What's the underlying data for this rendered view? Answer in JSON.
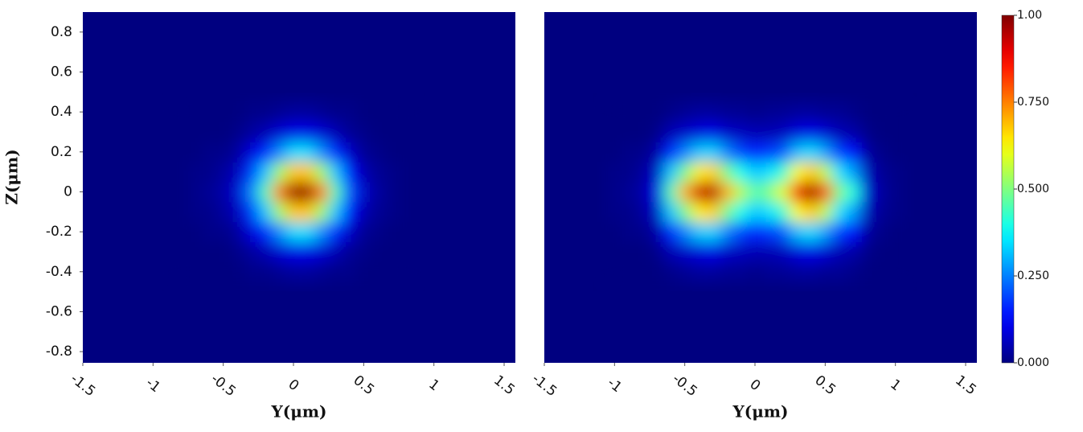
{
  "chart_data": [
    {
      "type": "heatmap",
      "colormap": "jet",
      "xlabel": "Y(μm)",
      "ylabel": "Z(μm)",
      "xlim": [
        -1.5,
        1.58
      ],
      "ylim": [
        -0.856,
        0.9
      ],
      "zlim": [
        0,
        1
      ],
      "xticks": [
        -1.5,
        -1,
        -0.5,
        0,
        0.5,
        1,
        1.5
      ],
      "yticks": [
        -0.8,
        -0.6,
        -0.4,
        -0.2,
        0,
        0.2,
        0.4,
        0.6,
        0.8
      ],
      "x": [
        -0.8,
        -0.7,
        -0.6,
        -0.5,
        -0.4,
        -0.3,
        -0.2,
        -0.1,
        0,
        0.1,
        0.2,
        0.3,
        0.4,
        0.5,
        0.6,
        0.7,
        0.8
      ],
      "y": [
        -0.4,
        -0.3,
        -0.2,
        -0.1,
        0,
        0.1,
        0.2,
        0.3,
        0.4
      ],
      "z": [
        [
          0,
          0,
          0,
          0,
          0,
          0.01,
          0.01,
          0.02,
          0.03,
          0.03,
          0.02,
          0.01,
          0.01,
          0,
          0,
          0,
          0
        ],
        [
          0,
          0,
          0,
          0,
          0.01,
          0.03,
          0.05,
          0.08,
          0.1,
          0.1,
          0.08,
          0.05,
          0.02,
          0.01,
          0,
          0,
          0
        ],
        [
          0,
          0,
          0.01,
          0.01,
          0.03,
          0.09,
          0.16,
          0.26,
          0.34,
          0.34,
          0.26,
          0.16,
          0.07,
          0.02,
          0.01,
          0,
          0
        ],
        [
          0,
          0.01,
          0.01,
          0.03,
          0.06,
          0.18,
          0.32,
          0.53,
          0.68,
          0.68,
          0.53,
          0.32,
          0.14,
          0.05,
          0.02,
          0.01,
          0
        ],
        [
          0,
          0.01,
          0.02,
          0.04,
          0.08,
          0.25,
          0.45,
          0.75,
          0.97,
          0.97,
          0.75,
          0.45,
          0.2,
          0.07,
          0.03,
          0.01,
          0
        ],
        [
          0,
          0.01,
          0.01,
          0.03,
          0.06,
          0.18,
          0.32,
          0.53,
          0.68,
          0.68,
          0.53,
          0.32,
          0.14,
          0.05,
          0.02,
          0.01,
          0
        ],
        [
          0,
          0,
          0.01,
          0.01,
          0.03,
          0.09,
          0.16,
          0.26,
          0.34,
          0.34,
          0.26,
          0.16,
          0.07,
          0.02,
          0.01,
          0,
          0
        ],
        [
          0,
          0,
          0,
          0,
          0.01,
          0.03,
          0.05,
          0.08,
          0.1,
          0.1,
          0.08,
          0.05,
          0.02,
          0.01,
          0,
          0,
          0
        ],
        [
          0,
          0,
          0,
          0,
          0,
          0.01,
          0.01,
          0.02,
          0.03,
          0.03,
          0.02,
          0.01,
          0.01,
          0,
          0,
          0,
          0
        ]
      ]
    },
    {
      "type": "heatmap",
      "colormap": "jet",
      "xlabel": "Y(μm)",
      "xlim": [
        -1.5,
        1.58
      ],
      "ylim": [
        -0.856,
        0.9
      ],
      "zlim": [
        0,
        1
      ],
      "xticks": [
        -1.5,
        -1,
        -0.5,
        0,
        0.5,
        1,
        1.5
      ],
      "zticks": [
        {
          "value": 0,
          "label": "0.000"
        },
        {
          "value": 0.25,
          "label": "0.250"
        },
        {
          "value": 0.5,
          "label": "0.500"
        },
        {
          "value": 0.75,
          "label": "0.750"
        },
        {
          "value": 1,
          "label": "1.00"
        }
      ],
      "x": [
        -1.0,
        -0.9,
        -0.8,
        -0.7,
        -0.6,
        -0.5,
        -0.4,
        -0.3,
        -0.2,
        -0.1,
        0,
        0.1,
        0.2,
        0.3,
        0.4,
        0.5,
        0.6,
        0.7,
        0.8,
        0.9,
        1.0
      ],
      "y": [
        -0.4,
        -0.3,
        -0.2,
        -0.1,
        0,
        0.1,
        0.2,
        0.3,
        0.4
      ],
      "z": [
        [
          0,
          0,
          0,
          0,
          0.01,
          0.02,
          0.03,
          0.03,
          0.02,
          0.02,
          0.01,
          0.02,
          0.02,
          0.03,
          0.03,
          0.02,
          0.02,
          0.01,
          0,
          0,
          0
        ],
        [
          0,
          0,
          0,
          0.01,
          0.05,
          0.07,
          0.09,
          0.1,
          0.07,
          0.06,
          0.05,
          0.05,
          0.06,
          0.09,
          0.1,
          0.08,
          0.05,
          0.04,
          0.01,
          0,
          0
        ],
        [
          0,
          0.01,
          0.01,
          0.04,
          0.16,
          0.25,
          0.32,
          0.33,
          0.25,
          0.19,
          0.16,
          0.18,
          0.21,
          0.31,
          0.34,
          0.28,
          0.18,
          0.14,
          0.03,
          0.01,
          0
        ],
        [
          0.01,
          0.01,
          0.03,
          0.07,
          0.32,
          0.49,
          0.64,
          0.67,
          0.49,
          0.39,
          0.32,
          0.35,
          0.42,
          0.62,
          0.68,
          0.56,
          0.35,
          0.28,
          0.06,
          0.02,
          0.01
        ],
        [
          0.01,
          0.02,
          0.04,
          0.1,
          0.45,
          0.7,
          0.92,
          0.95,
          0.7,
          0.55,
          0.45,
          0.5,
          0.6,
          0.88,
          0.97,
          0.8,
          0.5,
          0.4,
          0.08,
          0.03,
          0.01
        ],
        [
          0.01,
          0.01,
          0.03,
          0.07,
          0.32,
          0.49,
          0.64,
          0.67,
          0.49,
          0.39,
          0.32,
          0.35,
          0.42,
          0.62,
          0.68,
          0.56,
          0.35,
          0.28,
          0.06,
          0.02,
          0.01
        ],
        [
          0,
          0.01,
          0.01,
          0.04,
          0.16,
          0.25,
          0.32,
          0.33,
          0.25,
          0.19,
          0.16,
          0.18,
          0.21,
          0.31,
          0.34,
          0.28,
          0.18,
          0.14,
          0.03,
          0.01,
          0
        ],
        [
          0,
          0,
          0,
          0.01,
          0.05,
          0.07,
          0.09,
          0.1,
          0.07,
          0.06,
          0.05,
          0.05,
          0.06,
          0.09,
          0.1,
          0.08,
          0.05,
          0.04,
          0.01,
          0,
          0
        ],
        [
          0,
          0,
          0,
          0,
          0.01,
          0.02,
          0.03,
          0.03,
          0.02,
          0.02,
          0.01,
          0.02,
          0.02,
          0.03,
          0.03,
          0.02,
          0.02,
          0.01,
          0,
          0,
          0
        ]
      ]
    }
  ]
}
